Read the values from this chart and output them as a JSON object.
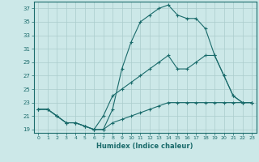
{
  "xlabel": "Humidex (Indice chaleur)",
  "bg_color": "#cce8e8",
  "line_color": "#1a6b6b",
  "grid_color": "#aacccc",
  "xlim": [
    -0.5,
    23.5
  ],
  "ylim": [
    18.5,
    38.0
  ],
  "xticks": [
    0,
    1,
    2,
    3,
    4,
    5,
    6,
    7,
    8,
    9,
    10,
    11,
    12,
    13,
    14,
    15,
    16,
    17,
    18,
    19,
    20,
    21,
    22,
    23
  ],
  "yticks": [
    19,
    21,
    23,
    25,
    27,
    29,
    31,
    33,
    35,
    37
  ],
  "line1_x": [
    0,
    1,
    2,
    3,
    4,
    5,
    6,
    7,
    8,
    9,
    10,
    11,
    12,
    13,
    14,
    15,
    16,
    17,
    18,
    19,
    20,
    21,
    22,
    23
  ],
  "line1_y": [
    22,
    22,
    21,
    20,
    20,
    19.5,
    19,
    19,
    20,
    20.5,
    21,
    21.5,
    22,
    22.5,
    23,
    23,
    23,
    23,
    23,
    23,
    23,
    23,
    23,
    23
  ],
  "line2_x": [
    0,
    1,
    2,
    3,
    4,
    5,
    6,
    7,
    8,
    9,
    10,
    11,
    12,
    13,
    14,
    15,
    16,
    17,
    18,
    19,
    20,
    21,
    22,
    23
  ],
  "line2_y": [
    22,
    22,
    21,
    20,
    20,
    19.5,
    19,
    19,
    22,
    28,
    32,
    35,
    36,
    37,
    37.5,
    36,
    35.5,
    35.5,
    34,
    30,
    27,
    24,
    23,
    23
  ],
  "line3_x": [
    0,
    1,
    2,
    3,
    4,
    5,
    6,
    7,
    8,
    9,
    10,
    11,
    12,
    13,
    14,
    15,
    16,
    17,
    18,
    19,
    20,
    21,
    22,
    23
  ],
  "line3_y": [
    22,
    22,
    21,
    20,
    20,
    19.5,
    19,
    21,
    24,
    25,
    26,
    27,
    28,
    29,
    30,
    28,
    28,
    29,
    30,
    30,
    27,
    24,
    23,
    23
  ]
}
